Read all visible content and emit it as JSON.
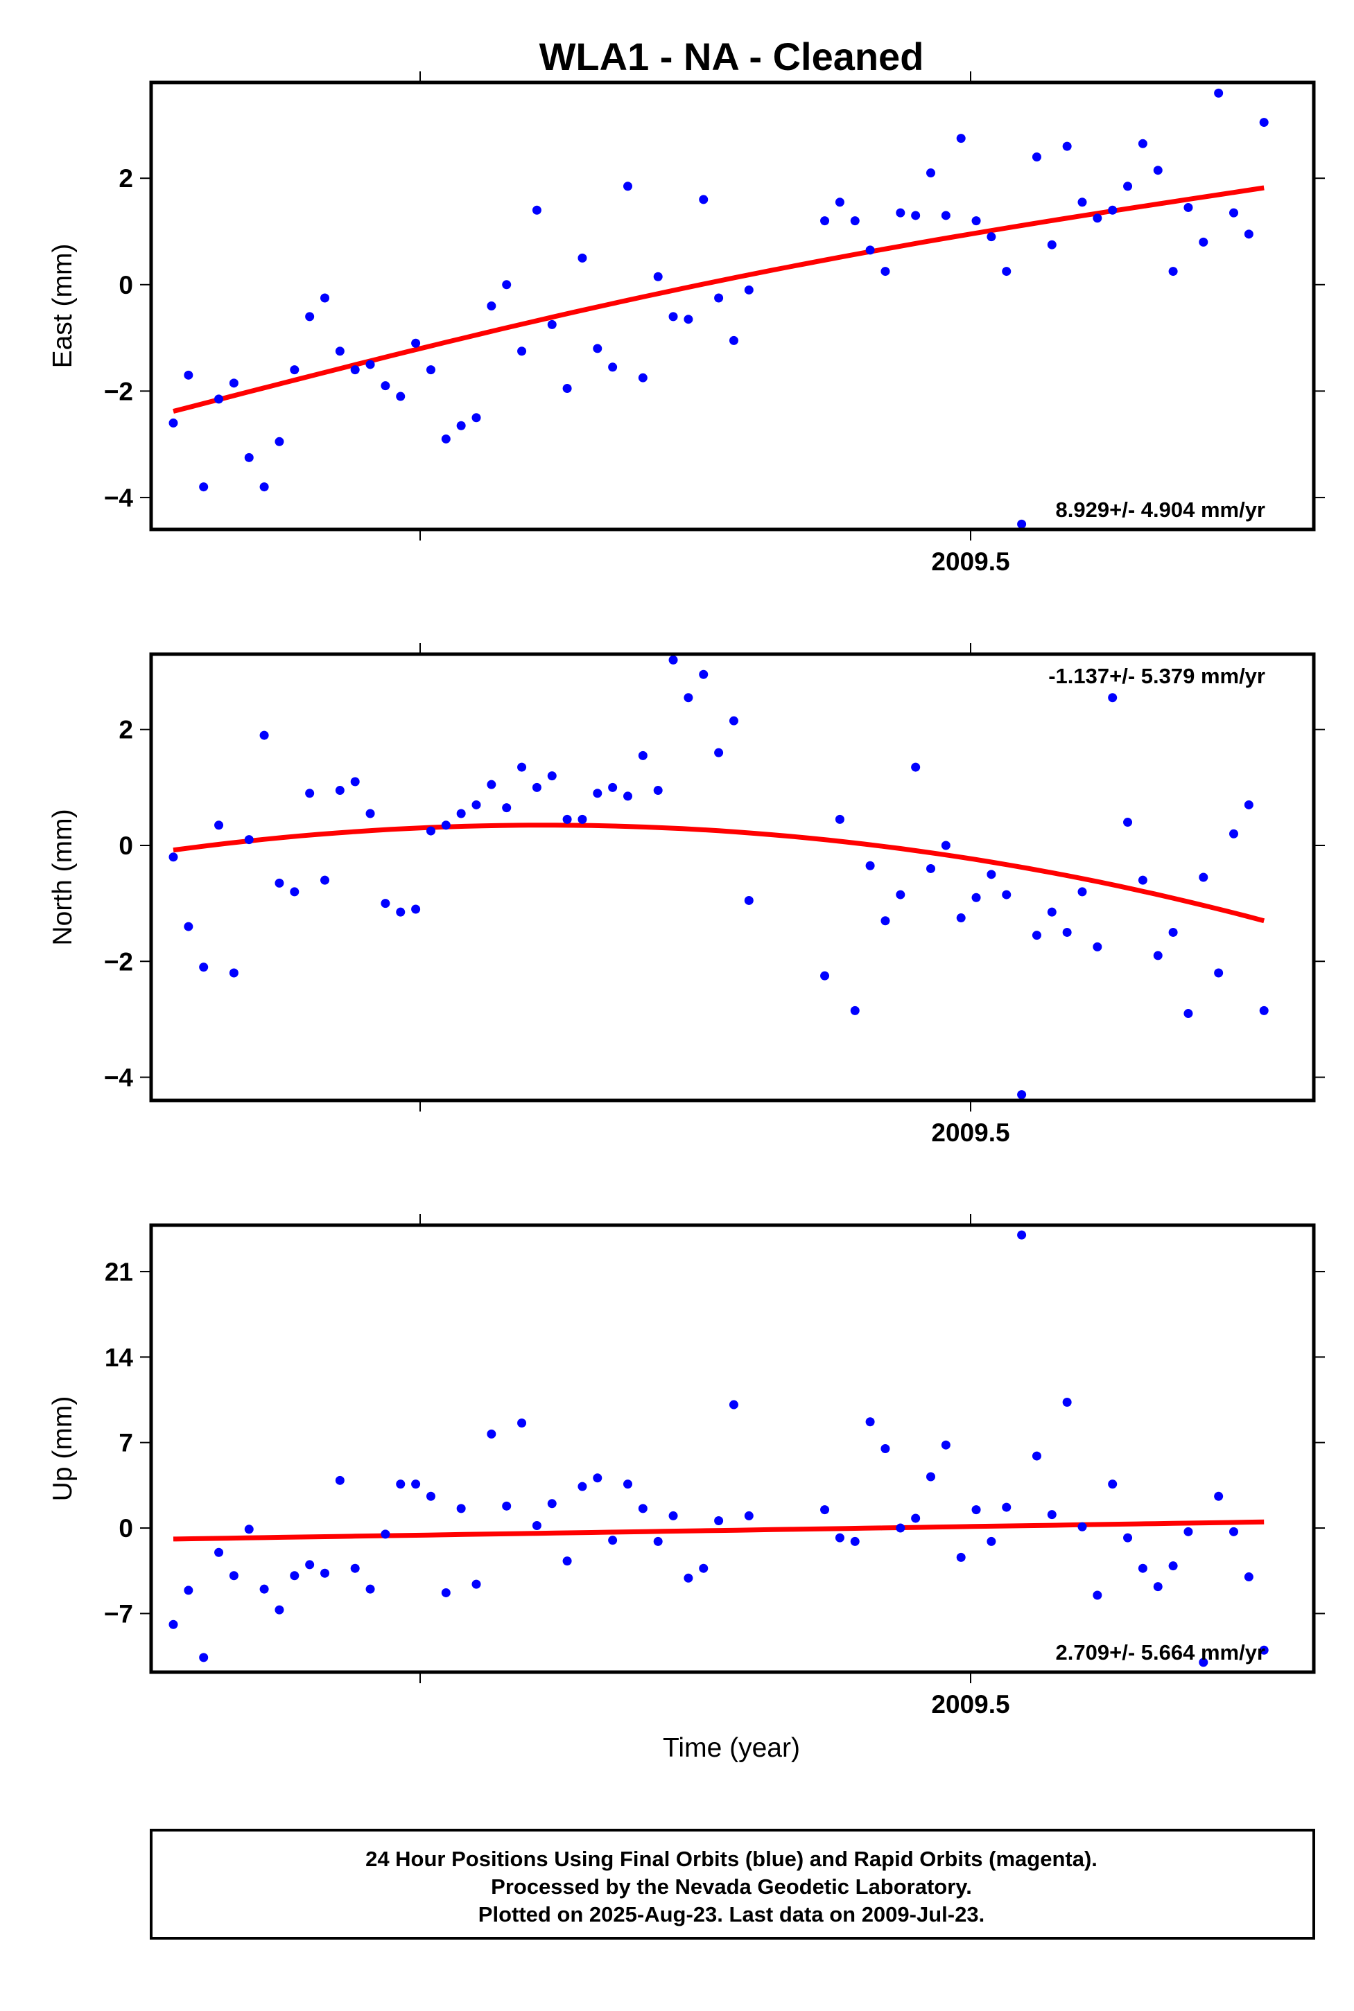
{
  "chart_data": {
    "title": "WLA1  - NA - Cleaned",
    "xlabel": "Time (year)",
    "x_tick_label": "2009.5",
    "panels": [
      {
        "type": "scatter",
        "ylabel": "East (mm)",
        "ylim": [
          -4.6,
          3.8
        ],
        "yticks": [
          -4,
          -2,
          0,
          2
        ],
        "rate_label": "8.929+/- 4.904 mm/yr",
        "rate_position": "bottom-right",
        "points": [
          -2.6,
          -1.7,
          -3.8,
          -2.15,
          -1.85,
          -3.25,
          -3.8,
          -2.95,
          -1.6,
          -0.6,
          -0.25,
          -1.25,
          -1.6,
          -1.5,
          -1.9,
          -2.1,
          -1.1,
          -1.6,
          -2.9,
          -2.65,
          -2.5,
          -0.4,
          0.0,
          -1.25,
          1.4,
          -0.75,
          -1.95,
          0.5,
          -1.2,
          -1.55,
          1.85,
          -1.75,
          0.15,
          -0.6,
          -0.65,
          1.6,
          -0.25,
          -1.05,
          -0.1,
          null,
          null,
          null,
          null,
          1.2,
          1.55,
          1.2,
          0.65,
          0.25,
          1.35,
          1.3,
          2.1,
          1.3,
          2.75,
          1.2,
          0.9,
          0.25,
          -4.5,
          2.4,
          0.75,
          2.6,
          1.55,
          1.25,
          1.4,
          1.85,
          2.65,
          2.15,
          0.25,
          1.45,
          0.8,
          3.6,
          1.35,
          0.95,
          3.05
        ],
        "fit": [
          -2.38,
          1.82
        ],
        "fit_shape": "slightly concave"
      },
      {
        "type": "scatter",
        "ylabel": "North (mm)",
        "ylim": [
          -4.4,
          3.3
        ],
        "yticks": [
          -4,
          -2,
          0,
          2
        ],
        "rate_label": "-1.137+/- 5.379 mm/yr",
        "rate_position": "top-right",
        "points": [
          -0.2,
          -1.4,
          -2.1,
          0.35,
          -2.2,
          0.1,
          1.9,
          -0.65,
          -0.8,
          0.9,
          -0.6,
          0.95,
          1.1,
          0.55,
          -1.0,
          -1.15,
          -1.1,
          0.25,
          0.35,
          0.55,
          0.7,
          1.05,
          0.65,
          1.35,
          1.0,
          1.2,
          0.45,
          0.45,
          0.9,
          1.0,
          0.85,
          1.55,
          0.95,
          3.2,
          2.55,
          2.95,
          1.6,
          2.15,
          -0.95,
          null,
          null,
          null,
          null,
          -2.25,
          0.45,
          -2.85,
          -0.35,
          -1.3,
          -0.85,
          1.35,
          -0.4,
          0.0,
          -1.25,
          -0.9,
          -0.5,
          -0.85,
          -4.3,
          -1.55,
          -1.15,
          -1.5,
          -0.8,
          -1.75,
          2.55,
          0.4,
          -0.6,
          -1.9,
          -1.5,
          -2.9,
          -0.55,
          -2.2,
          0.2,
          0.7,
          -2.85
        ],
        "fit": [
          -0.08,
          0.35,
          -1.3
        ],
        "fit_shape": "peaks early then declines"
      },
      {
        "type": "scatter",
        "ylabel": "Up (mm)",
        "ylim": [
          -11.8,
          24.8
        ],
        "yticks": [
          -7,
          0,
          7,
          14,
          21
        ],
        "rate_label": "2.709+/- 5.664 mm/yr",
        "rate_position": "bottom-right",
        "points": [
          -7.9,
          -5.1,
          -10.6,
          -2.0,
          -3.9,
          -0.1,
          -5.0,
          -6.7,
          -3.9,
          -3.0,
          -3.7,
          3.9,
          -3.3,
          -5.0,
          -0.5,
          3.6,
          3.6,
          2.6,
          -5.3,
          1.6,
          -4.6,
          7.7,
          1.8,
          8.6,
          0.2,
          2.0,
          -2.7,
          3.4,
          4.1,
          -1.0,
          3.6,
          1.6,
          -1.1,
          1.0,
          -4.1,
          -3.3,
          0.6,
          10.1,
          1.0,
          null,
          null,
          null,
          null,
          1.5,
          -0.8,
          -1.1,
          8.7,
          6.5,
          0.0,
          0.8,
          4.2,
          6.8,
          -2.4,
          1.5,
          -1.1,
          1.7,
          24.0,
          5.9,
          1.1,
          10.3,
          0.1,
          -5.5,
          3.6,
          -0.8,
          -3.3,
          -4.8,
          -3.1,
          -0.3,
          -11.0,
          2.6,
          -0.3,
          -4.0,
          -10.0
        ],
        "fit": [
          -0.9,
          0.5
        ],
        "fit_shape": "nearly flat"
      }
    ]
  },
  "footer": {
    "line1": "24 Hour Positions Using Final Orbits (blue) and Rapid Orbits (magenta).",
    "line2": "Processed by the Nevada Geodetic Laboratory.",
    "line3": "Plotted on 2025-Aug-23. Last data on 2009-Jul-23."
  },
  "colors": {
    "points": "#0000ff",
    "fit": "#ff0000",
    "frame": "#000000"
  }
}
